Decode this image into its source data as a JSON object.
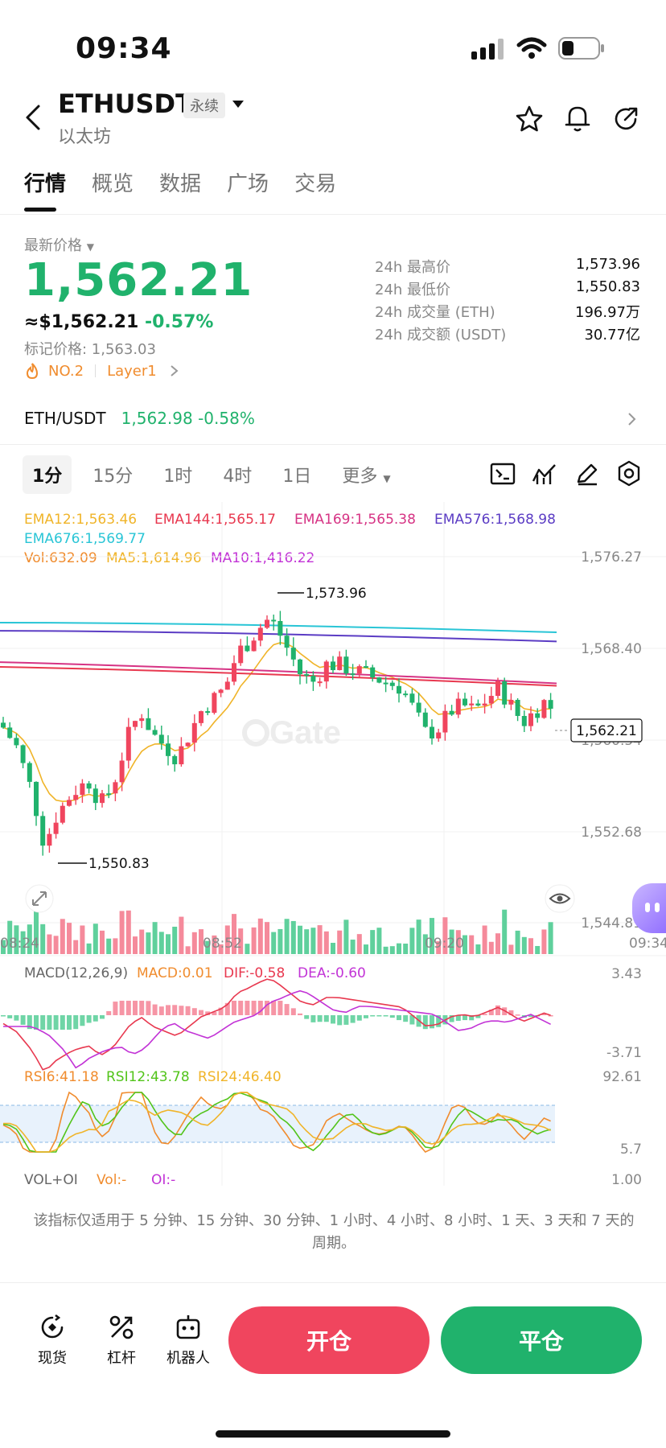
{
  "status": {
    "time": "09:34"
  },
  "header": {
    "title": "ETHUSDT",
    "badge": "永续",
    "subtitle": "以太坊"
  },
  "tabs": [
    {
      "label": "行情",
      "active": true
    },
    {
      "label": "概览"
    },
    {
      "label": "数据"
    },
    {
      "label": "广场"
    },
    {
      "label": "交易"
    }
  ],
  "price": {
    "label": "最新价格",
    "last": "1,562.21",
    "usd": "≈$1,562.21",
    "change": "-0.57%",
    "mark": "标记价格: 1,563.03",
    "rank": "NO.2",
    "sector": "Layer1"
  },
  "stats": [
    {
      "k": "24h 最高价",
      "v": "1,573.96"
    },
    {
      "k": "24h 最低价",
      "v": "1,550.83"
    },
    {
      "k": "24h 成交量 (ETH)",
      "v": "196.97万"
    },
    {
      "k": "24h 成交额 (USDT)",
      "v": "30.77亿"
    }
  ],
  "spot_pair": {
    "name": "ETH/USDT",
    "price": "1,562.98",
    "change": "-0.58%"
  },
  "timeframes": [
    {
      "label": "1分",
      "active": true
    },
    {
      "label": "15分"
    },
    {
      "label": "1时"
    },
    {
      "label": "4时"
    },
    {
      "label": "1日"
    },
    {
      "label": "更多"
    }
  ],
  "legend": {
    "ema12": "EMA12:1,563.46",
    "ema144": "EMA144:1,565.17",
    "ema169": "EMA169:1,565.38",
    "ema576": "EMA576:1,568.98",
    "ema676": "EMA676:1,569.77",
    "vol": "Vol:632.09",
    "ma5": "MA5:1,614.96",
    "ma10": "MA10:1,416.22"
  },
  "axis": {
    "p1": "1,576.27",
    "p2": "1,568.40",
    "p3": "1,560.54",
    "p4": "1,552.68",
    "p5": "1,544.81",
    "high_label": "1,573.96",
    "low_label": "1,550.83",
    "current": "1,562.21",
    "t1": "08:24",
    "t2": "08:52",
    "t3": "09:20",
    "t4": "09:34"
  },
  "watermark": "Gate",
  "macd": {
    "title": "MACD(12,26,9)",
    "macd": "MACD:0.01",
    "dif": "DIF:-0.58",
    "dea": "DEA:-0.60",
    "max": "3.43",
    "min": "-3.71"
  },
  "rsi": {
    "r6": "RSI6:41.18",
    "r12": "RSI12:43.78",
    "r24": "RSI24:46.40",
    "max": "92.61",
    "min": "5.7"
  },
  "voloi": {
    "title": "VOL+OI",
    "vol": "Vol:-",
    "oi": "OI:-",
    "max": "1.00"
  },
  "note": "该指标仅适用于 5 分钟、15 分钟、30 分钟、1 小时、4 小时、8 小时、1 天、3 天和 7 天的周期。",
  "bottom": {
    "spot": "现货",
    "leverage": "杠杆",
    "robot": "机器人",
    "open": "开仓",
    "close": "平仓"
  },
  "colors": {
    "up": "#20b26c",
    "down": "#f0455e",
    "ema12": "#f0b429",
    "ema144": "#e8384f",
    "ema169": "#d63384",
    "ema576": "#5b3cc4",
    "ema676": "#29c5d6"
  }
}
